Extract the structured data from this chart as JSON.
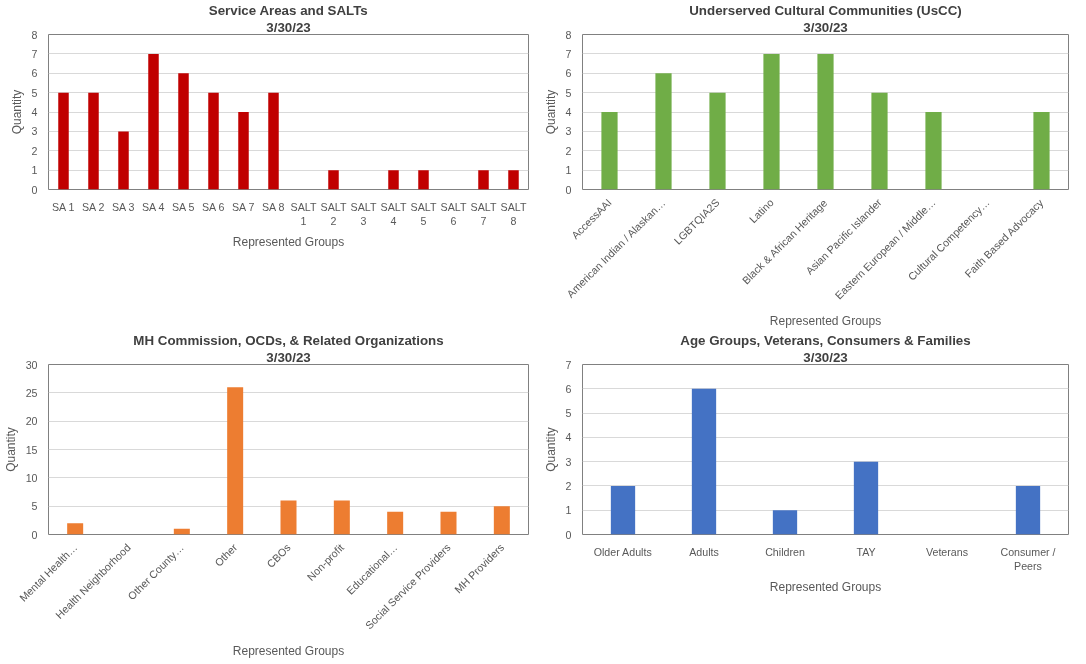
{
  "chart_data": [
    {
      "type": "bar",
      "title": "Service Areas and SALTs",
      "subtitle": "3/30/23",
      "xlabel": "Represented Groups",
      "ylabel": "Quantity",
      "categories": [
        "SA 1",
        "SA 2",
        "SA 3",
        "SA 4",
        "SA 5",
        "SA 6",
        "SA 7",
        "SA 8",
        "SALT 1",
        "SALT 2",
        "SALT 3",
        "SALT 4",
        "SALT 5",
        "SALT 6",
        "SALT 7",
        "SALT 8"
      ],
      "values": [
        5,
        5,
        3,
        7,
        6,
        5,
        4,
        5,
        0,
        1,
        0,
        1,
        1,
        0,
        1,
        1
      ],
      "color": "#c00000",
      "ylim": [
        0,
        8
      ],
      "yticks": [
        0,
        1,
        2,
        3,
        4,
        5,
        6,
        7,
        8
      ],
      "grid": "y"
    },
    {
      "type": "bar",
      "title": "Underserved Cultural Communities (UsCC)",
      "subtitle": "3/30/23",
      "xlabel": "Represented Groups",
      "ylabel": "Quantity",
      "categories": [
        "AccessAAI",
        "American Indian / Alaskan…",
        "LGBTQIA2S",
        "Latino",
        "Black & African Heritage",
        "Asian Pacific Islander",
        "Eastern European / Middle…",
        "Cultural Competency…",
        "Faith Based Advocacy"
      ],
      "values": [
        4,
        6,
        5,
        7,
        7,
        5,
        4,
        0,
        4
      ],
      "color": "#70ad47",
      "ylim": [
        0,
        8
      ],
      "yticks": [
        0,
        1,
        2,
        3,
        4,
        5,
        6,
        7,
        8
      ],
      "grid": "y"
    },
    {
      "type": "bar",
      "title": "MH Commission, OCDs, & Related Organizations",
      "subtitle": "3/30/23",
      "xlabel": "Represented Groups",
      "ylabel": "Quantity",
      "categories": [
        "Mental Health…",
        "Health Neighborhood",
        "Other County…",
        "Other",
        "CBOs",
        "Non-profit",
        "Educational…",
        "Social Service Providers",
        "MH Providers"
      ],
      "values": [
        2,
        0,
        1,
        26,
        6,
        6,
        4,
        4,
        5
      ],
      "color": "#ed7d31",
      "ylim": [
        0,
        30
      ],
      "yticks": [
        0,
        5,
        10,
        15,
        20,
        25,
        30
      ],
      "grid": "y"
    },
    {
      "type": "bar",
      "title": "Age Groups, Veterans, Consumers & Families",
      "subtitle": "3/30/23",
      "xlabel": "Represented Groups",
      "ylabel": "Quantity",
      "categories": [
        "Older Adults",
        "Adults",
        "Children",
        "TAY",
        "Veterans",
        "Consumer / Peers"
      ],
      "values": [
        2,
        6,
        1,
        3,
        0,
        2
      ],
      "color": "#4472c4",
      "ylim": [
        0,
        7
      ],
      "yticks": [
        0,
        1,
        2,
        3,
        4,
        5,
        6,
        7
      ],
      "grid": "y"
    }
  ]
}
